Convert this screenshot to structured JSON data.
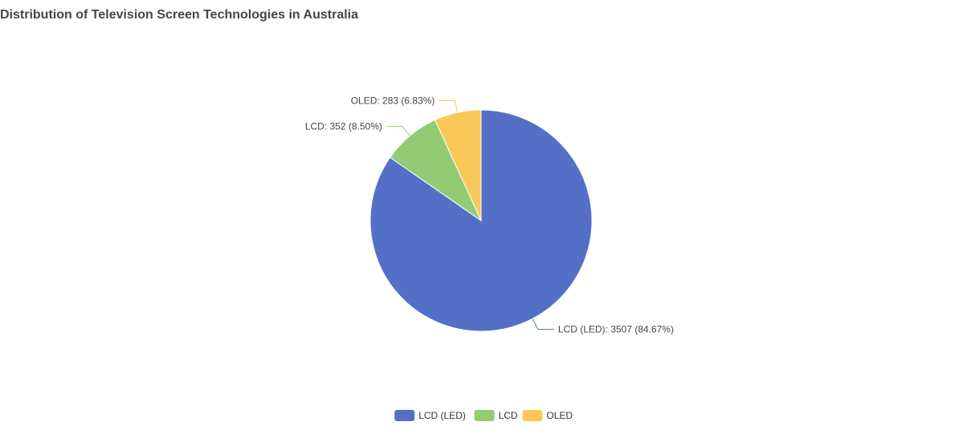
{
  "chart_data": {
    "type": "pie",
    "title": "Distribution of Television Screen Technologies in Australia",
    "legend_position": "bottom",
    "slices": [
      {
        "name": "LCD (LED)",
        "value": 3507,
        "percent": "84.67%",
        "color": "#5470c6"
      },
      {
        "name": "LCD",
        "value": 352,
        "percent": "8.50%",
        "color": "#91cc75"
      },
      {
        "name": "OLED",
        "value": 283,
        "percent": "6.83%",
        "color": "#fac858"
      }
    ]
  }
}
